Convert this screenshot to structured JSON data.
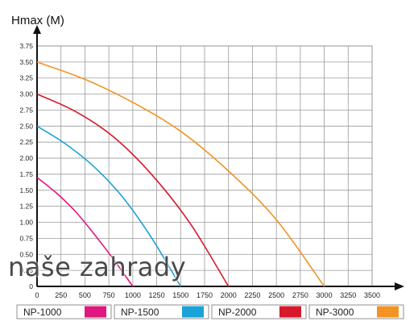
{
  "chart_data": {
    "type": "line",
    "title": "",
    "ylabel": "Hmax (M)",
    "xlabel": "",
    "xlim": [
      0,
      3500
    ],
    "ylim": [
      0,
      3.75
    ],
    "x_ticks": [
      "0",
      "250",
      "500",
      "750",
      "1000",
      "1250",
      "1500",
      "1750",
      "2000",
      "2250",
      "2500",
      "2750",
      "3000",
      "3250",
      "3500"
    ],
    "y_ticks": [
      "0.25",
      "0.50",
      "0.75",
      "1.00",
      "1.25",
      "1.50",
      "1.75",
      "2.00",
      "2.25",
      "2.50",
      "2.75",
      "3.00",
      "3.25",
      "3.50",
      "3.75"
    ],
    "grid": true,
    "legend_position": "bottom",
    "series": [
      {
        "name": "NP-1000",
        "color": "#e0177f",
        "x": [
          0,
          200,
          400,
          600,
          800,
          1000
        ],
        "y": [
          1.7,
          1.46,
          1.17,
          0.81,
          0.42,
          0.0
        ]
      },
      {
        "name": "NP-1500",
        "color": "#1aa3d8",
        "x": [
          0,
          300,
          600,
          900,
          1200,
          1500
        ],
        "y": [
          2.5,
          2.22,
          1.86,
          1.38,
          0.75,
          0.0
        ]
      },
      {
        "name": "NP-2000",
        "color": "#d7182a",
        "x": [
          0,
          400,
          800,
          1200,
          1600,
          2000
        ],
        "y": [
          3.0,
          2.73,
          2.33,
          1.74,
          0.98,
          0.0
        ]
      },
      {
        "name": "NP-3000",
        "color": "#f39323",
        "x": [
          0,
          500,
          1000,
          1500,
          2000,
          2500,
          3000
        ],
        "y": [
          3.5,
          3.23,
          2.87,
          2.42,
          1.8,
          1.04,
          0.0
        ]
      }
    ]
  },
  "watermark_text": "naše zahrady"
}
